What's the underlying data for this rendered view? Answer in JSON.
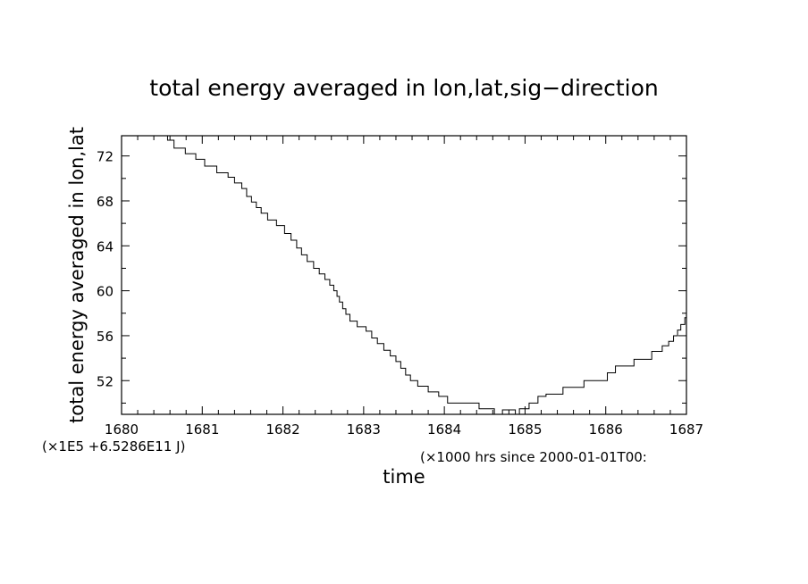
{
  "chart_data": {
    "type": "line",
    "title": "total energy averaged in lon,lat,sig−direction",
    "xlabel": "time",
    "ylabel": "total energy averaged in lon,lat",
    "y_scale_note": "(×1E5 +6.5286E11 J)",
    "x_scale_note": "(×1000 hrs  since 2000-01-01T00:",
    "xlim": [
      1680,
      1687
    ],
    "ylim": [
      49.0,
      73.8
    ],
    "x_ticks": [
      "1680",
      "1681",
      "1682",
      "1683",
      "1684",
      "1685",
      "1686",
      "1687"
    ],
    "y_ticks": [
      "52",
      "56",
      "60",
      "64",
      "68",
      "72"
    ],
    "step": true,
    "grid": false,
    "series": [
      {
        "points": [
          [
            1680.5,
            73.8
          ],
          [
            1680.57,
            73.4
          ],
          [
            1680.65,
            72.7
          ],
          [
            1680.79,
            72.2
          ],
          [
            1680.92,
            71.7
          ],
          [
            1681.03,
            71.1
          ],
          [
            1681.18,
            70.5
          ],
          [
            1681.32,
            70.1
          ],
          [
            1681.4,
            69.6
          ],
          [
            1681.49,
            69.1
          ],
          [
            1681.55,
            68.4
          ],
          [
            1681.61,
            67.9
          ],
          [
            1681.67,
            67.4
          ],
          [
            1681.73,
            66.9
          ],
          [
            1681.81,
            66.3
          ],
          [
            1681.92,
            65.8
          ],
          [
            1682.02,
            65.1
          ],
          [
            1682.1,
            64.5
          ],
          [
            1682.17,
            63.8
          ],
          [
            1682.23,
            63.2
          ],
          [
            1682.3,
            62.6
          ],
          [
            1682.38,
            62.0
          ],
          [
            1682.45,
            61.5
          ],
          [
            1682.52,
            61.0
          ],
          [
            1682.58,
            60.5
          ],
          [
            1682.63,
            60.0
          ],
          [
            1682.67,
            59.5
          ],
          [
            1682.7,
            59.0
          ],
          [
            1682.74,
            58.4
          ],
          [
            1682.78,
            57.9
          ],
          [
            1682.83,
            57.3
          ],
          [
            1682.92,
            56.8
          ],
          [
            1683.03,
            56.4
          ],
          [
            1683.1,
            55.8
          ],
          [
            1683.17,
            55.3
          ],
          [
            1683.25,
            54.7
          ],
          [
            1683.33,
            54.2
          ],
          [
            1683.4,
            53.7
          ],
          [
            1683.46,
            53.1
          ],
          [
            1683.52,
            52.5
          ],
          [
            1683.58,
            52.0
          ],
          [
            1683.67,
            51.5
          ],
          [
            1683.8,
            51.0
          ],
          [
            1683.93,
            50.6
          ],
          [
            1684.04,
            50.0
          ],
          [
            1684.43,
            49.5
          ],
          [
            1684.62,
            49.0
          ],
          [
            1684.72,
            49.4
          ],
          [
            1684.88,
            49.0
          ],
          [
            1684.93,
            49.5
          ],
          [
            1685.05,
            50.0
          ],
          [
            1685.16,
            50.6
          ],
          [
            1685.26,
            50.8
          ],
          [
            1685.47,
            51.4
          ],
          [
            1685.73,
            52.0
          ],
          [
            1686.02,
            52.7
          ],
          [
            1686.12,
            53.3
          ],
          [
            1686.35,
            53.9
          ],
          [
            1686.57,
            54.6
          ],
          [
            1686.7,
            55.1
          ],
          [
            1686.78,
            55.5
          ],
          [
            1686.84,
            56.0
          ],
          [
            1686.89,
            56.5
          ],
          [
            1686.93,
            57.0
          ],
          [
            1686.98,
            57.6
          ],
          [
            1687.0,
            58.1
          ]
        ]
      }
    ]
  }
}
